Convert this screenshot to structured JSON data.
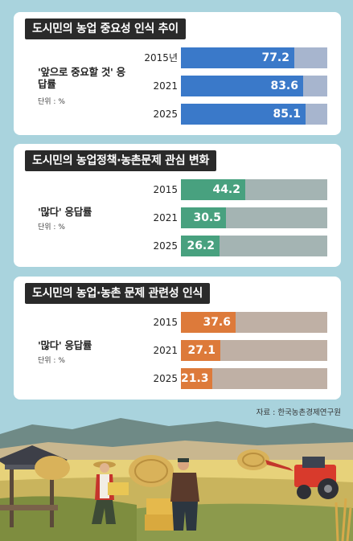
{
  "colors": {
    "background": "#a9d3dd",
    "panel1_bar": "#3a79c9",
    "panel1_track": "#a7b5ce",
    "panel2_bar": "#48a17f",
    "panel2_track": "#a4b4b3",
    "panel3_bar": "#dd7a3a",
    "panel3_track": "#bfb0a5"
  },
  "chart_data": [
    {
      "type": "bar",
      "title": "도시민의 농업 중요성 인식 추이",
      "series_label": "'앞으로 중요할 것' 응답률",
      "unit_label": "단위 : %",
      "categories": [
        "2015년",
        "2021",
        "2025"
      ],
      "values": [
        77.2,
        83.6,
        85.1
      ],
      "value_labels": [
        "77.2",
        "83.6",
        "85.1"
      ],
      "xlim": [
        0,
        100
      ]
    },
    {
      "type": "bar",
      "title": "도시민의 농업정책·농촌문제 관심 변화",
      "series_label": "'많다' 응답률",
      "unit_label": "단위 : %",
      "categories": [
        "2015",
        "2021",
        "2025"
      ],
      "values": [
        44.2,
        30.5,
        26.2
      ],
      "value_labels": [
        "44.2",
        "30.5",
        "26.2"
      ],
      "xlim": [
        0,
        100
      ]
    },
    {
      "type": "bar",
      "title": "도시민의 농업·농촌 문제 관련성 인식",
      "series_label": "'많다' 응답률",
      "unit_label": "단위 : %",
      "categories": [
        "2015",
        "2021",
        "2025"
      ],
      "values": [
        37.6,
        27.1,
        21.3
      ],
      "value_labels": [
        "37.6",
        "27.1",
        "21.3"
      ],
      "xlim": [
        0,
        100
      ]
    }
  ],
  "source": "자료 : 한국농촌경제연구원"
}
